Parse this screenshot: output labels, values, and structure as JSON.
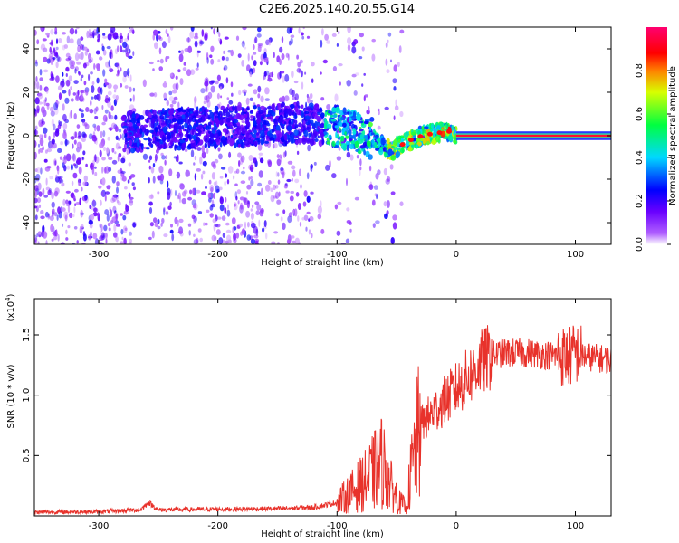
{
  "title": "C2E6.2025.140.20.55.G14",
  "chart_data": [
    {
      "type": "heatmap",
      "xlabel": "Height of straight line (km)",
      "ylabel": "Frequency (Hz)",
      "xlim": [
        -354,
        130
      ],
      "ylim": [
        -50,
        50
      ],
      "xticks": [
        -300,
        -200,
        -100,
        0,
        100
      ],
      "yticks": [
        -40,
        -20,
        0,
        20,
        40
      ],
      "colorbar": {
        "label": "Normalized spectral amplitude",
        "range": [
          0,
          1
        ],
        "ticks": [
          0.0,
          0.2,
          0.4,
          0.6,
          0.8
        ],
        "colors": [
          "#ffffff",
          "#8a00ff",
          "#0000ff",
          "#00ffff",
          "#00ff00",
          "#ffff00",
          "#ff0000",
          "#ff0080"
        ]
      },
      "ridge": [
        {
          "x": -270,
          "y": 2
        },
        {
          "x": -240,
          "y": 3
        },
        {
          "x": -200,
          "y": 4
        },
        {
          "x": -160,
          "y": 5
        },
        {
          "x": -125,
          "y": 6
        },
        {
          "x": -100,
          "y": 4
        },
        {
          "x": -80,
          "y": 1
        },
        {
          "x": -65,
          "y": -3
        },
        {
          "x": -55,
          "y": -7
        },
        {
          "x": -45,
          "y": -4
        },
        {
          "x": -35,
          "y": -1
        },
        {
          "x": -20,
          "y": 1
        },
        {
          "x": -5,
          "y": 2
        },
        {
          "x": 0,
          "y": 0
        },
        {
          "x": 130,
          "y": 0
        }
      ]
    },
    {
      "type": "line",
      "xlabel": "Height of straight line (km)",
      "ylabel": "SNR (10 * v/v)",
      "yscale_label": "(x10",
      "yscale_exp": "4",
      "xlim": [
        -354,
        130
      ],
      "ylim": [
        0,
        18000
      ],
      "xticks": [
        -300,
        -200,
        -100,
        0,
        100
      ],
      "yticks": [
        0.5,
        1.0,
        1.5
      ],
      "series": [
        {
          "color": "#e8322b",
          "points": [
            {
              "x": -354,
              "y": 300
            },
            {
              "x": -300,
              "y": 350
            },
            {
              "x": -265,
              "y": 500
            },
            {
              "x": -258,
              "y": 1100
            },
            {
              "x": -250,
              "y": 500
            },
            {
              "x": -200,
              "y": 550
            },
            {
              "x": -150,
              "y": 600
            },
            {
              "x": -120,
              "y": 700
            },
            {
              "x": -100,
              "y": 1100
            },
            {
              "x": -85,
              "y": 2200
            },
            {
              "x": -75,
              "y": 3000
            },
            {
              "x": -62,
              "y": 4500
            },
            {
              "x": -55,
              "y": 2500
            },
            {
              "x": -48,
              "y": 1200
            },
            {
              "x": -42,
              "y": 700
            },
            {
              "x": -38,
              "y": 3500
            },
            {
              "x": -30,
              "y": 7500
            },
            {
              "x": -20,
              "y": 8500
            },
            {
              "x": -10,
              "y": 9500
            },
            {
              "x": 0,
              "y": 10500
            },
            {
              "x": 10,
              "y": 11500
            },
            {
              "x": 20,
              "y": 12600
            },
            {
              "x": 30,
              "y": 13300
            },
            {
              "x": 40,
              "y": 13500
            },
            {
              "x": 60,
              "y": 13500
            },
            {
              "x": 80,
              "y": 13300
            },
            {
              "x": 95,
              "y": 13200
            },
            {
              "x": 100,
              "y": 13500
            },
            {
              "x": 110,
              "y": 13200
            },
            {
              "x": 130,
              "y": 12900
            }
          ]
        }
      ]
    }
  ]
}
